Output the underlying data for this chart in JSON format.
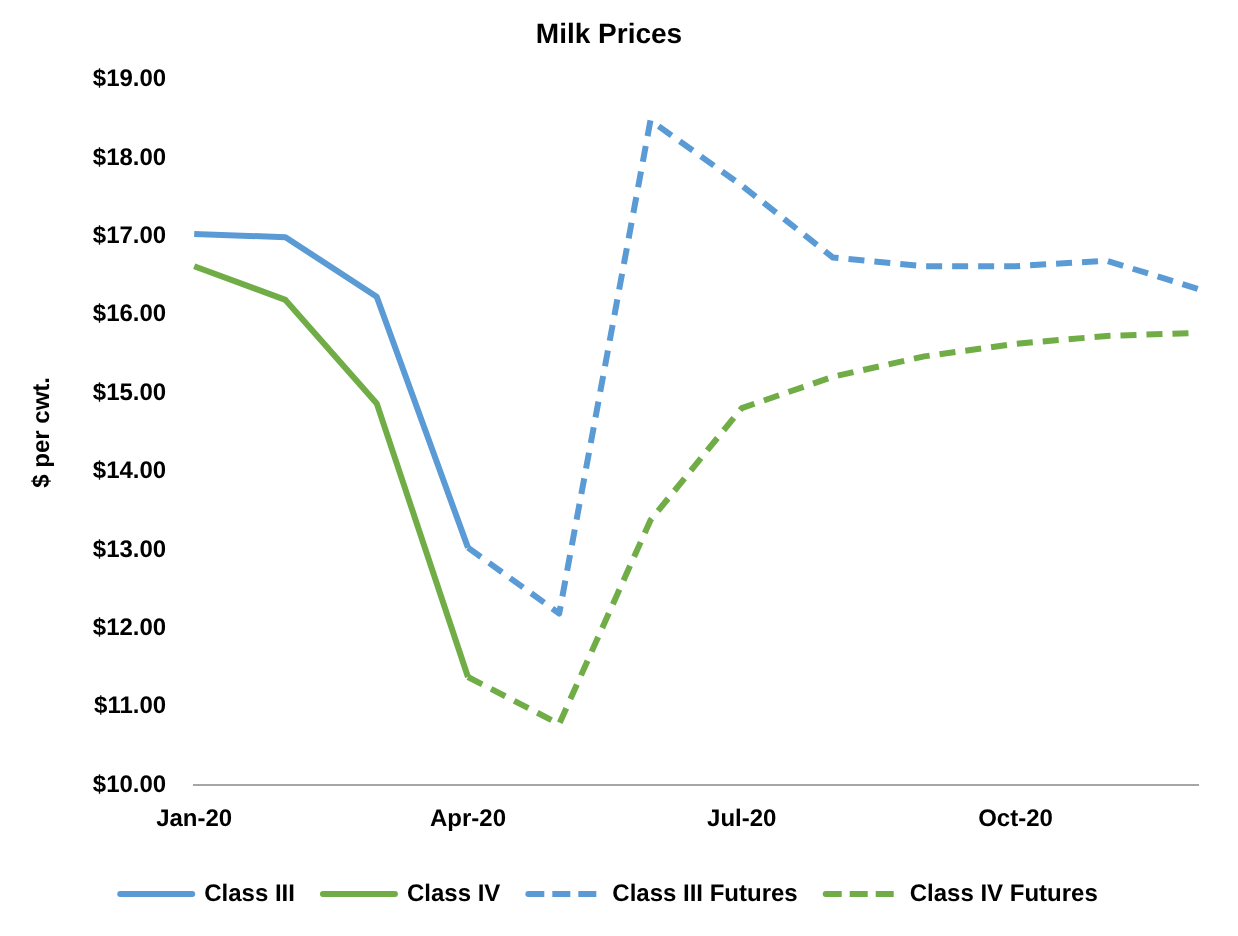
{
  "chart_data": {
    "type": "line",
    "title": "Milk Prices",
    "ylabel": "$ per cwt.",
    "categories": [
      "Jan-20",
      null,
      null,
      "Apr-20",
      null,
      null,
      "Jul-20",
      null,
      null,
      "Oct-20",
      null,
      null
    ],
    "series": [
      {
        "name": "Class III",
        "color": "#5b9bd5",
        "line_style": "solid",
        "values": [
          17.03,
          16.99,
          16.23,
          13.03,
          null,
          null,
          null,
          null,
          null,
          null,
          null,
          null
        ]
      },
      {
        "name": "Class IV",
        "color": "#70ad47",
        "line_style": "solid",
        "values": [
          16.62,
          16.19,
          14.87,
          11.38,
          null,
          null,
          null,
          null,
          null,
          null,
          null,
          null
        ]
      },
      {
        "name": "Class III Futures",
        "color": "#5b9bd5",
        "line_style": "dashed",
        "values": [
          null,
          null,
          null,
          13.03,
          12.19,
          18.48,
          17.65,
          16.73,
          16.62,
          16.62,
          16.69,
          16.33
        ]
      },
      {
        "name": "Class IV Futures",
        "color": "#70ad47",
        "line_style": "dashed",
        "values": [
          null,
          null,
          null,
          11.38,
          10.78,
          13.38,
          14.81,
          15.21,
          15.47,
          15.63,
          15.73,
          15.77
        ]
      }
    ],
    "ylim": [
      10,
      19
    ],
    "yticks": [
      {
        "value": 10,
        "label": "$10.00"
      },
      {
        "value": 11,
        "label": "$11.00"
      },
      {
        "value": 12,
        "label": "$12.00"
      },
      {
        "value": 13,
        "label": "$13.00"
      },
      {
        "value": 14,
        "label": "$14.00"
      },
      {
        "value": 15,
        "label": "$15.00"
      },
      {
        "value": 16,
        "label": "$16.00"
      },
      {
        "value": 17,
        "label": "$17.00"
      },
      {
        "value": 18,
        "label": "$18.00"
      },
      {
        "value": 19,
        "label": "$19.00"
      }
    ],
    "grid": false,
    "legend": "bottom",
    "marker": "none"
  }
}
